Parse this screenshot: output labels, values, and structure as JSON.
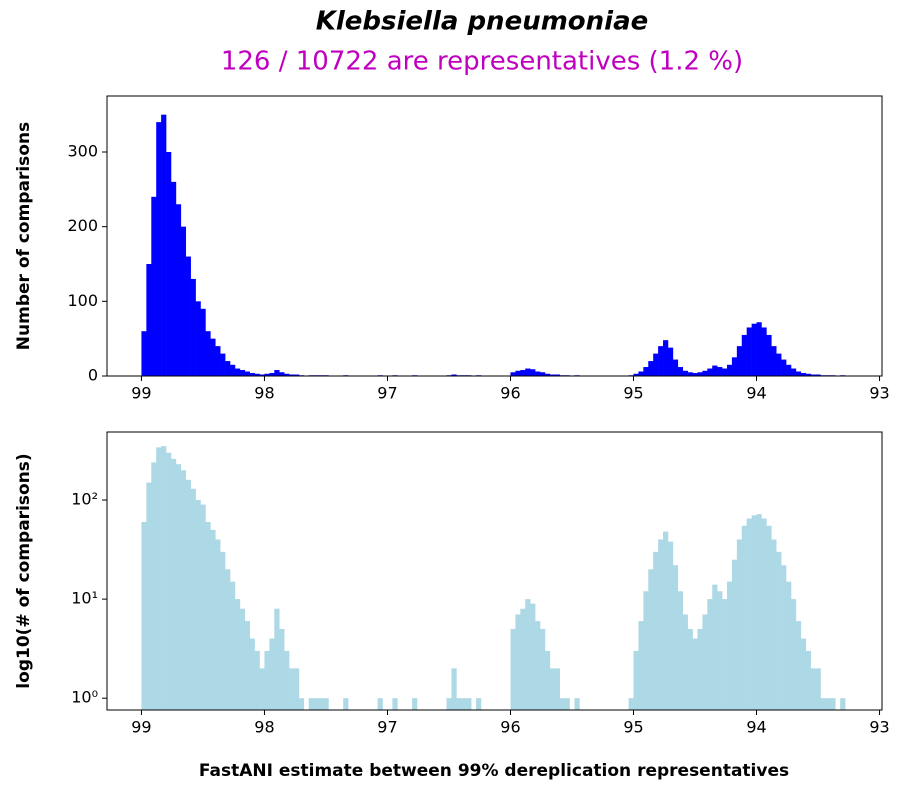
{
  "chart_data": [
    {
      "type": "histogram",
      "title": "Klebsiella pneumoniae",
      "subtitle": "126 / 10722 are representatives (1.2 %)",
      "ylabel": "Number of comparisons",
      "color": "#0000ff",
      "bins": [
        99,
        98.96,
        98.92,
        98.88,
        98.84,
        98.8,
        98.76,
        98.72,
        98.68,
        98.64,
        98.6,
        98.56,
        98.52,
        98.48,
        98.44,
        98.4,
        98.36,
        98.32,
        98.28,
        98.24,
        98.2,
        98.16,
        98.12,
        98.08,
        98.04,
        98,
        97.96,
        97.92,
        97.88,
        97.84,
        97.8,
        97.76,
        97.72,
        97.68,
        97.64,
        97.6,
        97.56,
        97.52,
        97.48,
        97.44,
        97.4,
        97.36,
        97.32,
        97.28,
        97.24,
        97.2,
        97.16,
        97.12,
        97.08,
        97.04,
        97,
        96.96,
        96.92,
        96.88,
        96.84,
        96.8,
        96.76,
        96.72,
        96.68,
        96.64,
        96.6,
        96.56,
        96.52,
        96.48,
        96.44,
        96.4,
        96.36,
        96.32,
        96.28,
        96.24,
        96.2,
        96.16,
        96.12,
        96.08,
        96.04,
        96,
        95.96,
        95.92,
        95.88,
        95.84,
        95.8,
        95.76,
        95.72,
        95.68,
        95.64,
        95.6,
        95.56,
        95.52,
        95.48,
        95.44,
        95.4,
        95.36,
        95.32,
        95.28,
        95.24,
        95.2,
        95.16,
        95.12,
        95.08,
        95.04,
        95,
        94.96,
        94.92,
        94.88,
        94.84,
        94.8,
        94.76,
        94.72,
        94.68,
        94.64,
        94.6,
        94.56,
        94.52,
        94.48,
        94.44,
        94.4,
        94.36,
        94.32,
        94.28,
        94.24,
        94.2,
        94.16,
        94.12,
        94.08,
        94.04,
        94,
        93.96,
        93.92,
        93.88,
        93.84,
        93.8,
        93.76,
        93.72,
        93.68,
        93.64,
        93.6,
        93.56,
        93.52,
        93.48,
        93.44,
        93.4,
        93.36,
        93.32,
        93.28
      ],
      "counts": [
        60,
        150,
        240,
        340,
        350,
        300,
        260,
        230,
        200,
        160,
        130,
        100,
        90,
        60,
        50,
        40,
        30,
        20,
        15,
        10,
        8,
        6,
        4,
        3,
        2,
        3,
        4,
        8,
        5,
        3,
        2,
        2,
        1,
        0,
        1,
        1,
        1,
        1,
        0,
        0,
        0,
        1,
        0,
        0,
        0,
        0,
        0,
        0,
        1,
        0,
        0,
        1,
        0,
        0,
        0,
        1,
        0,
        0,
        0,
        0,
        0,
        0,
        1,
        2,
        1,
        1,
        1,
        0,
        1,
        0,
        0,
        0,
        0,
        0,
        0,
        5,
        7,
        8,
        10,
        9,
        6,
        5,
        3,
        2,
        2,
        1,
        1,
        0,
        1,
        0,
        0,
        0,
        0,
        0,
        0,
        0,
        0,
        0,
        0,
        1,
        3,
        6,
        12,
        20,
        30,
        40,
        48,
        38,
        22,
        12,
        7,
        5,
        4,
        5,
        7,
        10,
        14,
        12,
        10,
        15,
        25,
        40,
        55,
        65,
        70,
        72,
        65,
        55,
        40,
        30,
        22,
        15,
        10,
        6,
        4,
        3,
        2,
        2,
        1,
        1,
        1,
        0,
        1
      ],
      "xlim": [
        99.28,
        92.98
      ],
      "xticks": [
        99,
        98,
        97,
        96,
        95,
        94,
        93
      ],
      "ylim": [
        0,
        375
      ],
      "yticks": [
        0,
        100,
        200,
        300
      ]
    },
    {
      "type": "histogram",
      "ylabel": "log10(# of comparisons)",
      "xlabel": "FastANI estimate between 99% dereplication representatives",
      "color": "#add8e6",
      "log_scale": true,
      "bins": [
        99,
        98.96,
        98.92,
        98.88,
        98.84,
        98.8,
        98.76,
        98.72,
        98.68,
        98.64,
        98.6,
        98.56,
        98.52,
        98.48,
        98.44,
        98.4,
        98.36,
        98.32,
        98.28,
        98.24,
        98.2,
        98.16,
        98.12,
        98.08,
        98.04,
        98,
        97.96,
        97.92,
        97.88,
        97.84,
        97.8,
        97.76,
        97.72,
        97.68,
        97.64,
        97.6,
        97.56,
        97.52,
        97.48,
        97.44,
        97.4,
        97.36,
        97.32,
        97.28,
        97.24,
        97.2,
        97.16,
        97.12,
        97.08,
        97.04,
        97,
        96.96,
        96.92,
        96.88,
        96.84,
        96.8,
        96.76,
        96.72,
        96.68,
        96.64,
        96.6,
        96.56,
        96.52,
        96.48,
        96.44,
        96.4,
        96.36,
        96.32,
        96.28,
        96.24,
        96.2,
        96.16,
        96.12,
        96.08,
        96.04,
        96,
        95.96,
        95.92,
        95.88,
        95.84,
        95.8,
        95.76,
        95.72,
        95.68,
        95.64,
        95.6,
        95.56,
        95.52,
        95.48,
        95.44,
        95.4,
        95.36,
        95.32,
        95.28,
        95.24,
        95.2,
        95.16,
        95.12,
        95.08,
        95.04,
        95,
        94.96,
        94.92,
        94.88,
        94.84,
        94.8,
        94.76,
        94.72,
        94.68,
        94.64,
        94.6,
        94.56,
        94.52,
        94.48,
        94.44,
        94.4,
        94.36,
        94.32,
        94.28,
        94.24,
        94.2,
        94.16,
        94.12,
        94.08,
        94.04,
        94,
        93.96,
        93.92,
        93.88,
        93.84,
        93.8,
        93.76,
        93.72,
        93.68,
        93.64,
        93.6,
        93.56,
        93.52,
        93.48,
        93.44,
        93.4,
        93.36,
        93.32,
        93.28
      ],
      "counts": [
        60,
        150,
        240,
        340,
        350,
        300,
        260,
        230,
        200,
        160,
        130,
        100,
        90,
        60,
        50,
        40,
        30,
        20,
        15,
        10,
        8,
        6,
        4,
        3,
        2,
        3,
        4,
        8,
        5,
        3,
        2,
        2,
        1,
        0,
        1,
        1,
        1,
        1,
        0,
        0,
        0,
        1,
        0,
        0,
        0,
        0,
        0,
        0,
        1,
        0,
        0,
        1,
        0,
        0,
        0,
        1,
        0,
        0,
        0,
        0,
        0,
        0,
        1,
        2,
        1,
        1,
        1,
        0,
        1,
        0,
        0,
        0,
        0,
        0,
        0,
        5,
        7,
        8,
        10,
        9,
        6,
        5,
        3,
        2,
        2,
        1,
        1,
        0,
        1,
        0,
        0,
        0,
        0,
        0,
        0,
        0,
        0,
        0,
        0,
        1,
        3,
        6,
        12,
        20,
        30,
        40,
        48,
        38,
        22,
        12,
        7,
        5,
        4,
        5,
        7,
        10,
        14,
        12,
        10,
        15,
        25,
        40,
        55,
        65,
        70,
        72,
        65,
        55,
        40,
        30,
        22,
        15,
        10,
        6,
        4,
        3,
        2,
        2,
        1,
        1,
        1,
        0,
        1
      ],
      "xlim": [
        99.28,
        92.98
      ],
      "xticks": [
        99,
        98,
        97,
        96,
        95,
        94,
        93
      ],
      "ylim": [
        0.76,
        486
      ],
      "yticks": [
        {
          "value": 1,
          "label": "10⁰"
        },
        {
          "value": 10,
          "label": "10¹"
        },
        {
          "value": 100,
          "label": "10²"
        }
      ]
    }
  ]
}
